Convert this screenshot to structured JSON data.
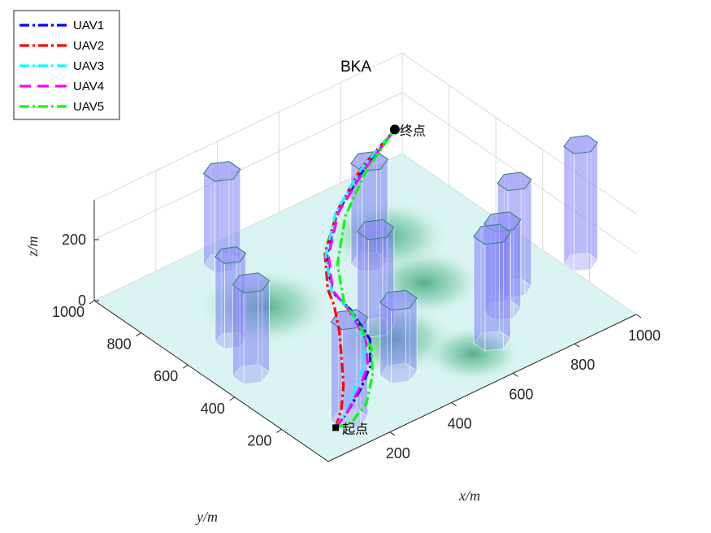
{
  "chart_data": {
    "type": "line",
    "title": "BKA",
    "xlabel": "x/m",
    "ylabel": "y/m",
    "zlabel": "z/m",
    "x_ticks": [
      "200",
      "400",
      "600",
      "800",
      "1000"
    ],
    "y_ticks": [
      "200",
      "400",
      "600",
      "800",
      "1000"
    ],
    "z_ticks": [
      "0",
      "200"
    ],
    "xlim": [
      0,
      1000
    ],
    "ylim": [
      0,
      1000
    ],
    "zlim": [
      0,
      330
    ],
    "grid": true,
    "legend_position": "top-left",
    "start_label": "起点",
    "end_label": "终点",
    "start_point": [
      100,
      100,
      10
    ],
    "end_point": [
      900,
      900,
      180
    ],
    "obstacles": [
      {
        "x": 160,
        "y": 120,
        "r": 48,
        "h": 325
      },
      {
        "x": 380,
        "y": 200,
        "r": 48,
        "h": 240
      },
      {
        "x": 95,
        "y": 455,
        "r": 48,
        "h": 300
      },
      {
        "x": 150,
        "y": 615,
        "r": 40,
        "h": 280
      },
      {
        "x": 465,
        "y": 410,
        "r": 48,
        "h": 320
      },
      {
        "x": 650,
        "y": 155,
        "r": 48,
        "h": 350
      },
      {
        "x": 755,
        "y": 250,
        "r": 48,
        "h": 290
      },
      {
        "x": 635,
        "y": 660,
        "r": 48,
        "h": 330
      },
      {
        "x": 840,
        "y": 310,
        "r": 44,
        "h": 350
      },
      {
        "x": 350,
        "y": 915,
        "r": 48,
        "h": 300
      },
      {
        "x": 1040,
        "y": 290,
        "r": 44,
        "h": 385
      }
    ],
    "series": [
      {
        "name": "UAV1",
        "color": "#0000ff",
        "dash": "12 4 3 4",
        "points": [
          [
            100,
            100,
            10
          ],
          [
            150,
            115,
            30
          ],
          [
            210,
            140,
            60
          ],
          [
            270,
            175,
            90
          ],
          [
            310,
            230,
            130
          ],
          [
            330,
            340,
            160
          ],
          [
            340,
            430,
            165
          ],
          [
            420,
            560,
            170
          ],
          [
            560,
            700,
            175
          ],
          [
            730,
            810,
            178
          ],
          [
            900,
            900,
            180
          ]
        ]
      },
      {
        "name": "UAV2",
        "color": "#ff0000",
        "dash": "12 4 3 4",
        "points": [
          [
            100,
            100,
            10
          ],
          [
            145,
            135,
            30
          ],
          [
            190,
            185,
            60
          ],
          [
            230,
            245,
            95
          ],
          [
            275,
            315,
            130
          ],
          [
            315,
            390,
            155
          ],
          [
            340,
            450,
            165
          ],
          [
            430,
            580,
            170
          ],
          [
            570,
            710,
            175
          ],
          [
            730,
            820,
            178
          ],
          [
            900,
            900,
            180
          ]
        ]
      },
      {
        "name": "UAV3",
        "color": "#00ffff",
        "dash": "12 4 3 4",
        "points": [
          [
            100,
            100,
            10
          ],
          [
            150,
            120,
            30
          ],
          [
            200,
            150,
            60
          ],
          [
            255,
            185,
            90
          ],
          [
            300,
            240,
            125
          ],
          [
            330,
            340,
            155
          ],
          [
            345,
            440,
            160
          ],
          [
            425,
            570,
            168
          ],
          [
            560,
            705,
            174
          ],
          [
            725,
            815,
            178
          ],
          [
            900,
            900,
            180
          ]
        ]
      },
      {
        "name": "UAV4",
        "color": "#ff00ff",
        "dash": "14 8",
        "points": [
          [
            100,
            100,
            10
          ],
          [
            150,
            115,
            30
          ],
          [
            210,
            145,
            60
          ],
          [
            265,
            180,
            90
          ],
          [
            305,
            240,
            125
          ],
          [
            330,
            345,
            155
          ],
          [
            345,
            435,
            165
          ],
          [
            430,
            565,
            170
          ],
          [
            565,
            700,
            175
          ],
          [
            735,
            810,
            178
          ],
          [
            900,
            900,
            180
          ]
        ]
      },
      {
        "name": "UAV5",
        "color": "#00ff00",
        "dash": "12 4 3 4",
        "points": [
          [
            100,
            100,
            10
          ],
          [
            130,
            70,
            30
          ],
          [
            185,
            80,
            60
          ],
          [
            250,
            140,
            90
          ],
          [
            300,
            210,
            115
          ],
          [
            335,
            320,
            135
          ],
          [
            355,
            400,
            140
          ],
          [
            440,
            540,
            150
          ],
          [
            580,
            690,
            162
          ],
          [
            740,
            810,
            172
          ],
          [
            900,
            900,
            180
          ]
        ]
      }
    ]
  }
}
